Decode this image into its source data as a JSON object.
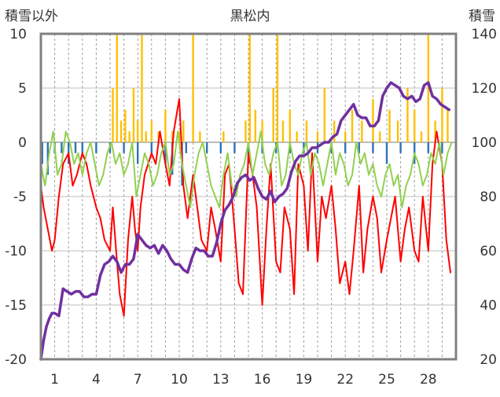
{
  "chart_data": {
    "type": "line",
    "title": "黒松内",
    "left_axis_title": "積雪以外",
    "right_axis_title": "積雪",
    "y_left": {
      "range": [
        -20,
        10
      ],
      "ticks": [
        "10",
        "5",
        "0",
        "-5",
        "-10",
        "-15",
        "-20"
      ]
    },
    "y_right": {
      "range": [
        20,
        140
      ],
      "ticks": [
        "140",
        "120",
        "100",
        "80",
        "60",
        "40",
        "20"
      ]
    },
    "x": {
      "range": [
        0,
        30
      ],
      "ticks": [
        "1",
        "4",
        "7",
        "10",
        "13",
        "16",
        "19",
        "22",
        "25",
        "28"
      ],
      "tick_days": [
        1,
        4,
        7,
        10,
        13,
        16,
        19,
        22,
        25,
        28
      ]
    },
    "grid": {
      "horizontal": true,
      "vertical": "dashed-daily"
    },
    "colors": {
      "temperature": "#ff0000",
      "secondary_temp": "#92d050",
      "snowfall": "#ffc000",
      "precipitation_bar": "#2e75b6",
      "snow_depth": "#7030a0",
      "frame": "#808080"
    },
    "series": [
      {
        "id": "temperature",
        "axis": "left",
        "x": [
          0,
          0.2,
          0.5,
          0.8,
          1.0,
          1.3,
          1.6,
          2.0,
          2.3,
          2.6,
          3.0,
          3.3,
          3.6,
          4.0,
          4.3,
          4.6,
          5.0,
          5.2,
          5.5,
          5.7,
          6.0,
          6.3,
          6.6,
          6.8,
          7.0,
          7.2,
          7.5,
          8.0,
          8.3,
          8.6,
          9.0,
          9.3,
          9.6,
          10.0,
          10.3,
          10.6,
          11.0,
          11.3,
          11.6,
          12.0,
          12.3,
          12.6,
          13.0,
          13.3,
          13.6,
          14.0,
          14.3,
          14.6,
          15.0,
          15.3,
          15.6,
          16.0,
          16.3,
          16.6,
          17.0,
          17.3,
          17.6,
          18.0,
          18.3,
          18.6,
          19.0,
          19.3,
          19.6,
          20.0,
          20.3,
          20.6,
          21.0,
          21.3,
          21.6,
          22.0,
          22.3,
          22.6,
          23.0,
          23.3,
          23.6,
          24.0,
          24.3,
          24.6,
          25.0,
          25.3,
          25.6,
          26.0,
          26.3,
          26.6,
          27.0,
          27.3,
          27.6,
          28.0,
          28.3,
          28.6,
          29.0,
          29.3,
          29.6
        ],
        "values": [
          -4,
          -6,
          -8,
          -10,
          -9,
          -5,
          -2,
          -1,
          -4,
          -3,
          -1,
          -2,
          -4,
          -6,
          -7,
          -9,
          -10,
          -6,
          -11,
          -14,
          -16,
          -9,
          -5,
          -8,
          -10,
          -6,
          -3,
          -1,
          -2,
          1,
          -2,
          -4,
          1,
          4,
          -4,
          -7,
          -3,
          -6,
          -9,
          -10,
          -6,
          -8,
          -11,
          -3,
          -2,
          -8,
          -13,
          -14,
          -1,
          -3,
          -6,
          -15,
          -8,
          -2,
          -11,
          -12,
          -6,
          -8,
          -14,
          -2,
          -4,
          -10,
          -1,
          -11,
          -5,
          -7,
          -4,
          -8,
          -13,
          -11,
          -14,
          -10,
          -4,
          -12,
          -8,
          -5,
          -7,
          -12,
          -9,
          -7,
          -5,
          -11,
          -8,
          -6,
          -10,
          -11,
          -5,
          -10,
          -2,
          1,
          -2,
          -9,
          -12
        ]
      },
      {
        "id": "secondary_temp",
        "axis": "left",
        "x": [
          0,
          0.3,
          0.6,
          0.9,
          1.2,
          1.5,
          1.8,
          2.1,
          2.4,
          2.7,
          3.0,
          3.3,
          3.6,
          3.9,
          4.2,
          4.5,
          4.8,
          5.1,
          5.4,
          5.7,
          6.0,
          6.3,
          6.6,
          6.9,
          7.2,
          7.5,
          7.8,
          8.1,
          8.4,
          8.7,
          9.0,
          9.3,
          9.6,
          9.9,
          10.2,
          10.5,
          10.8,
          11.1,
          11.4,
          11.7,
          12.0,
          12.3,
          12.6,
          12.9,
          13.2,
          13.5,
          13.8,
          14.1,
          14.4,
          14.7,
          15.0,
          15.3,
          15.6,
          15.9,
          16.2,
          16.5,
          16.8,
          17.1,
          17.4,
          17.7,
          18.0,
          18.3,
          18.6,
          18.9,
          19.2,
          19.5,
          19.8,
          20.1,
          20.4,
          20.7,
          21.0,
          21.3,
          21.6,
          21.9,
          22.2,
          22.5,
          22.8,
          23.1,
          23.4,
          23.7,
          24.0,
          24.3,
          24.6,
          24.9,
          25.2,
          25.5,
          25.8,
          26.1,
          26.4,
          26.7,
          27.0,
          27.3,
          27.6,
          27.9,
          28.2,
          28.5,
          28.8,
          29.1,
          29.4,
          29.7
        ],
        "values": [
          -2,
          -4,
          -1,
          1,
          -3,
          -2,
          1,
          0,
          -2,
          -1,
          -3,
          -1,
          0,
          -2,
          -4,
          -3,
          -1,
          0,
          -2,
          -1,
          -3,
          -2,
          0,
          -5,
          -3,
          -1,
          -2,
          -4,
          -3,
          -1,
          0,
          -3,
          -2,
          1,
          -2,
          -4,
          -6,
          -3,
          -1,
          0,
          -2,
          -4,
          -5,
          -6,
          -3,
          -1,
          -4,
          -5,
          -3,
          -2,
          0,
          -3,
          -1,
          1,
          -2,
          -3,
          -1,
          0,
          -4,
          -3,
          0,
          -2,
          -3,
          -1,
          0,
          -3,
          -1,
          -2,
          -4,
          -2,
          0,
          -3,
          -1,
          -2,
          -4,
          -3,
          0,
          -2,
          -1,
          -3,
          -2,
          -4,
          -5,
          -3,
          -2,
          -4,
          -3,
          -6,
          -4,
          -3,
          -1,
          -2,
          -4,
          -3,
          -1,
          -2,
          0,
          -3,
          -1,
          0
        ]
      },
      {
        "id": "snowfall",
        "axis": "left",
        "kind": "bars-up",
        "x": [
          5.2,
          5.5,
          5.8,
          6.1,
          6.4,
          6.7,
          7.0,
          7.3,
          7.6,
          8.0,
          8.5,
          9.0,
          9.5,
          10.0,
          10.3,
          11.0,
          11.5,
          13.2,
          14.8,
          15.1,
          15.5,
          16.0,
          16.8,
          17.1,
          17.5,
          18.0,
          18.5,
          19.2,
          20.0,
          20.5,
          21.2,
          22.0,
          22.5,
          23.2,
          24.0,
          24.5,
          25.2,
          25.8,
          26.5,
          27.0,
          27.5,
          28.0,
          28.5,
          29.0,
          29.4
        ],
        "values": [
          5,
          10,
          2,
          3,
          1,
          5,
          2,
          10,
          1,
          2,
          1,
          3,
          1,
          1,
          2,
          10,
          1,
          1,
          2,
          10,
          3,
          2,
          5,
          10,
          2,
          3,
          1,
          2,
          1,
          5,
          2,
          1,
          3,
          2,
          4,
          1,
          3,
          2,
          5,
          3,
          1,
          10,
          2,
          5,
          3
        ]
      },
      {
        "id": "precipitation_bar",
        "axis": "left",
        "kind": "bars-down",
        "x": [
          0.1,
          0.5,
          1.0,
          1.5,
          2.0,
          2.5,
          3.0,
          4.0,
          5.0,
          6.0,
          7.0,
          8.0,
          9.0,
          9.5,
          10.2,
          10.5,
          12.0,
          13.0,
          14.0,
          15.0,
          16.0,
          17.0,
          18.0,
          19.0,
          20.0,
          21.0,
          22.0,
          23.0,
          24.0,
          25.0,
          26.0,
          27.0,
          28.0,
          29.0
        ],
        "values": [
          -2,
          -3,
          -1,
          -1,
          -2,
          -1,
          -1,
          -1,
          -1,
          -1,
          -2,
          -1,
          -2,
          -3,
          -4,
          -1,
          -1,
          -1,
          -1,
          -2,
          -1,
          -1,
          -1,
          -1,
          -1,
          -1,
          -1,
          -1,
          -1,
          -2,
          -1,
          -2,
          -1,
          -1
        ]
      },
      {
        "id": "snow_depth",
        "axis": "right",
        "x": [
          0,
          0.2,
          0.4,
          0.6,
          0.8,
          1.0,
          1.3,
          1.6,
          1.9,
          2.2,
          2.5,
          2.8,
          3.1,
          3.4,
          3.7,
          4.0,
          4.3,
          4.6,
          4.9,
          5.2,
          5.5,
          5.8,
          6.1,
          6.4,
          6.7,
          7.0,
          7.3,
          7.6,
          7.9,
          8.2,
          8.5,
          8.8,
          9.1,
          9.4,
          9.7,
          10.0,
          10.3,
          10.6,
          10.9,
          11.2,
          11.5,
          11.8,
          12.1,
          12.4,
          12.7,
          13.0,
          13.3,
          13.6,
          13.9,
          14.2,
          14.5,
          14.8,
          15.1,
          15.4,
          15.7,
          16.0,
          16.3,
          16.6,
          16.9,
          17.2,
          17.5,
          17.8,
          18.1,
          18.4,
          18.7,
          19.0,
          19.3,
          19.6,
          19.9,
          20.2,
          20.5,
          20.8,
          21.1,
          21.4,
          21.7,
          22.0,
          22.3,
          22.6,
          22.9,
          23.2,
          23.5,
          23.8,
          24.1,
          24.4,
          24.7,
          25.0,
          25.3,
          25.6,
          25.9,
          26.2,
          26.5,
          26.8,
          27.1,
          27.4,
          27.7,
          28.0,
          28.3,
          28.6,
          28.9,
          29.2,
          29.5
        ],
        "values": [
          20,
          27,
          32,
          35,
          37,
          37,
          36,
          46,
          45,
          44,
          45,
          45,
          43,
          43,
          44,
          44,
          51,
          55,
          56,
          58,
          56,
          52,
          55,
          55,
          57,
          66,
          64,
          62,
          61,
          62,
          59,
          62,
          60,
          57,
          55,
          55,
          53,
          52,
          57,
          61,
          60,
          60,
          58,
          58,
          63,
          70,
          75,
          77,
          80,
          85,
          87,
          88,
          86,
          87,
          83,
          80,
          79,
          82,
          78,
          80,
          81,
          83,
          89,
          93,
          95,
          95,
          96,
          98,
          98,
          99,
          100,
          100,
          102,
          103,
          108,
          110,
          112,
          114,
          110,
          109,
          109,
          106,
          106,
          108,
          117,
          120,
          122,
          121,
          120,
          117,
          116,
          117,
          115,
          116,
          121,
          122,
          117,
          116,
          114,
          113,
          112
        ]
      }
    ]
  }
}
